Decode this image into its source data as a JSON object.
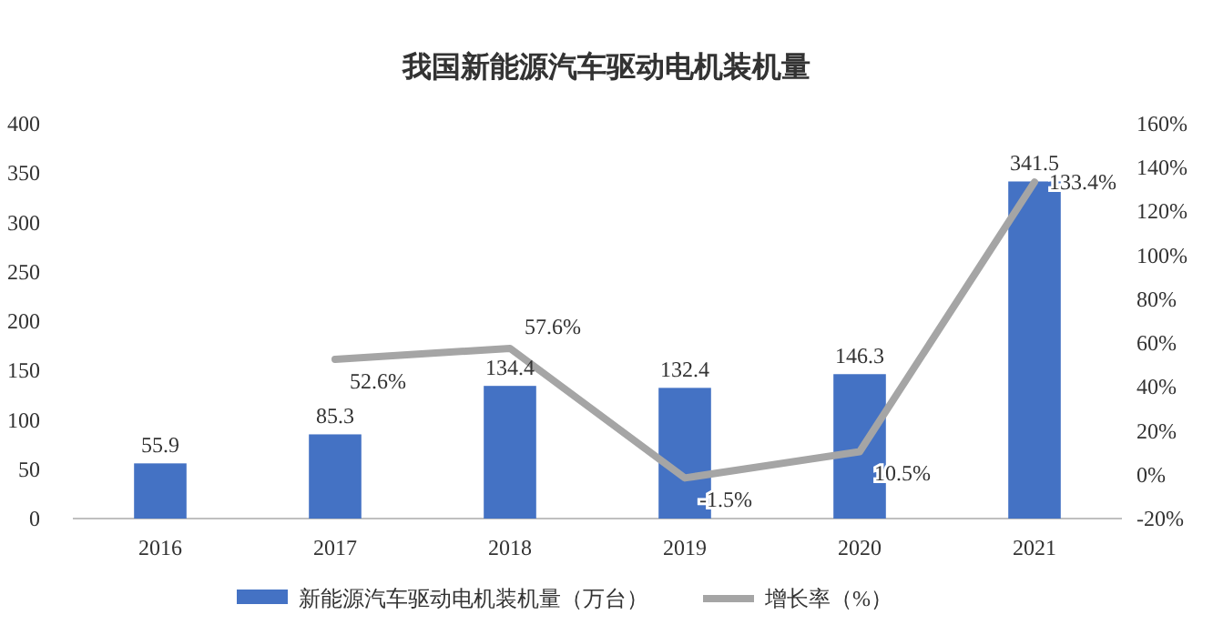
{
  "chart_data": {
    "type": "bar",
    "title": "我国新能源汽车驱动电机装机量",
    "categories": [
      "2016",
      "2017",
      "2018",
      "2019",
      "2020",
      "2021"
    ],
    "series": [
      {
        "name": "新能源汽车驱动电机装机量（万台）",
        "color": "#4472c4",
        "values": [
          55.9,
          85.3,
          134.4,
          132.4,
          146.3,
          341.5
        ],
        "value_labels": [
          "55.9",
          "85.3",
          "134.4",
          "132.4",
          "146.3",
          "341.5"
        ]
      },
      {
        "name": "增长率（%）",
        "type": "line",
        "axis": "y2",
        "color": "#a5a5a5",
        "values": [
          null,
          52.6,
          57.6,
          -1.5,
          10.5,
          133.4
        ],
        "value_labels": [
          null,
          "52.6%",
          "57.6%",
          "-1.5%",
          "10.5%",
          "133.4%"
        ]
      }
    ],
    "ylim": [
      0,
      400
    ],
    "yticks": [
      0,
      50,
      100,
      150,
      200,
      250,
      300,
      350,
      400
    ],
    "y2lim": [
      -20,
      160
    ],
    "y2ticks": [
      {
        "value": -20,
        "label": "-20%"
      },
      {
        "value": 0,
        "label": "0%"
      },
      {
        "value": 20,
        "label": "20%"
      },
      {
        "value": 40,
        "label": "40%"
      },
      {
        "value": 60,
        "label": "60%"
      },
      {
        "value": 80,
        "label": "80%"
      },
      {
        "value": 100,
        "label": "100%"
      },
      {
        "value": 120,
        "label": "120%"
      },
      {
        "value": 140,
        "label": "140%"
      },
      {
        "value": 160,
        "label": "160%"
      }
    ],
    "grid": false,
    "legend": "bottom",
    "marker": "none",
    "line_style": "solid"
  }
}
